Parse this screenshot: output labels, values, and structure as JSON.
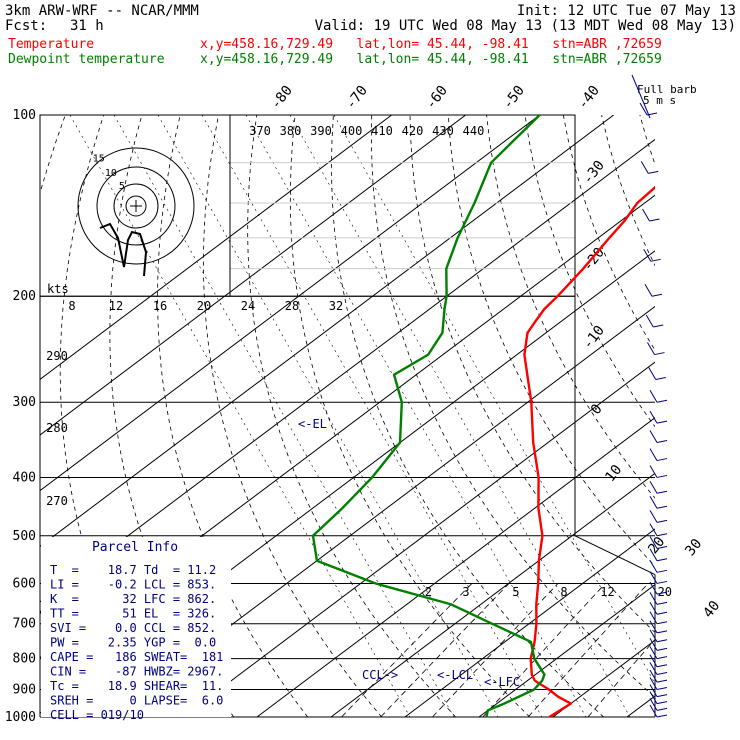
{
  "header": {
    "model": "3km ARW-WRF -- NCAR/MMM",
    "init": "Init: 12 UTC Tue 07 May 13",
    "fcst_label": "Fcst:",
    "fcst_value": "31 h",
    "valid": "Valid: 19 UTC Wed 08 May 13 (13 MDT Wed 08 May 13)",
    "legend": [
      {
        "name": "Temperature",
        "info": "x,y=458.16,729.49   lat,lon= 45.44, -98.41   stn=ABR ,72659",
        "color": "#ff0000"
      },
      {
        "name": "Dewpoint temperature",
        "info": "x,y=458.16,729.49   lat,lon= 45.44, -98.41   stn=ABR ,72659",
        "color": "#008000"
      }
    ]
  },
  "colors": {
    "temperature": "#ff0000",
    "dewpoint": "#008000",
    "parcel": "#000000",
    "annotation": "#000080"
  },
  "pressure_ticks": [
    "100",
    "200",
    "300",
    "400",
    "500",
    "600",
    "700",
    "800",
    "900",
    "1000"
  ],
  "skew_isotherm_labels": [
    "-80",
    "-70",
    "-60",
    "-50",
    "-40",
    "-30",
    "-20",
    "-10",
    "0",
    "10",
    "20",
    "30",
    "40"
  ],
  "theta_labels": [
    "370",
    "380",
    "390",
    "400",
    "410",
    "420",
    "430",
    "440"
  ],
  "theta_left_labels": [
    "290",
    "280",
    "270"
  ],
  "wind_speed_labels": [
    "8",
    "12",
    "16",
    "20",
    "24",
    "28",
    "32"
  ],
  "kts_label": "kts",
  "mixing_ratio_labels": [
    "2",
    "3",
    "5",
    "8",
    "12",
    "20"
  ],
  "hodograph_ring_labels": [
    "5",
    "10",
    "15"
  ],
  "full_barb_label": "Full barb",
  "full_barb_units": "5 m s",
  "levels": {
    "el": "<-EL",
    "ccl": "CCL->",
    "lcl": "<-LCL",
    "lfc": "<-LFC"
  },
  "parcel_info": {
    "title": "Parcel Info",
    "rows": [
      "T  =    18.7 Td  = 11.2",
      "LI =    -0.2 LCL = 853.",
      "K  =      32 LFC = 862.",
      "TT =      51 EL  = 326.",
      "SVI =    0.0 CCL = 852.",
      "PW =    2.35 YGP =  0.0",
      "CAPE =   186 SWEAT=  181",
      "CIN =    -87 HWBZ= 2967.",
      "Tc =    18.9 SHEAR=  11.",
      "SREH =     0 LAPSE=  6.0",
      "CELL = 019/10"
    ]
  },
  "chart_data": {
    "type": "line",
    "title": "",
    "xlabel": "",
    "ylabel": "",
    "y_scale": "log-pressure (hPa)",
    "ylim": [
      1000,
      100
    ],
    "series": [
      {
        "name": "Temperature",
        "color": "#ff0000",
        "pressure": [
          1000,
          950,
          925,
          900,
          870,
          850,
          800,
          750,
          700,
          650,
          600,
          550,
          500,
          450,
          400,
          350,
          300,
          270,
          250,
          230,
          220,
          210,
          200,
          180,
          160,
          150,
          140,
          130,
          120,
          110,
          100
        ],
        "temperature": [
          19.5,
          20.0,
          17.0,
          14.5,
          11.0,
          9.5,
          6.5,
          4.0,
          1.0,
          -2.5,
          -6.0,
          -10.0,
          -14.0,
          -19.5,
          -25.0,
          -32.0,
          -39.5,
          -45.0,
          -49.0,
          -52.5,
          -53.5,
          -54.5,
          -55.0,
          -56.5,
          -58.5,
          -59.5,
          -61.0,
          -61.5,
          -62.5,
          -63.0,
          -63.5
        ]
      },
      {
        "name": "Dewpoint temperature",
        "color": "#008000",
        "pressure": [
          1000,
          975,
          950,
          900,
          870,
          850,
          800,
          750,
          700,
          650,
          600,
          550,
          500,
          450,
          400,
          350,
          300,
          270,
          250,
          230,
          210,
          200,
          180,
          160,
          140,
          120,
          100
        ],
        "dewpoint": [
          11.0,
          10.0,
          11.0,
          12.5,
          12.0,
          11.2,
          7.0,
          3.5,
          -5.0,
          -14.0,
          -28.0,
          -40.0,
          -45.0,
          -46.0,
          -47.5,
          -50.0,
          -57.0,
          -63.0,
          -62.0,
          -64.0,
          -68.0,
          -70.0,
          -75.0,
          -79.0,
          -83.0,
          -88.0,
          -90.0
        ]
      }
    ],
    "isotherm_range_c": [
      -110,
      50
    ],
    "mixing_ratios_gkg": [
      2,
      3,
      5,
      8,
      12,
      20
    ],
    "wind_barbs": "profile of wind barbs at right edge (speeds not legible)"
  }
}
